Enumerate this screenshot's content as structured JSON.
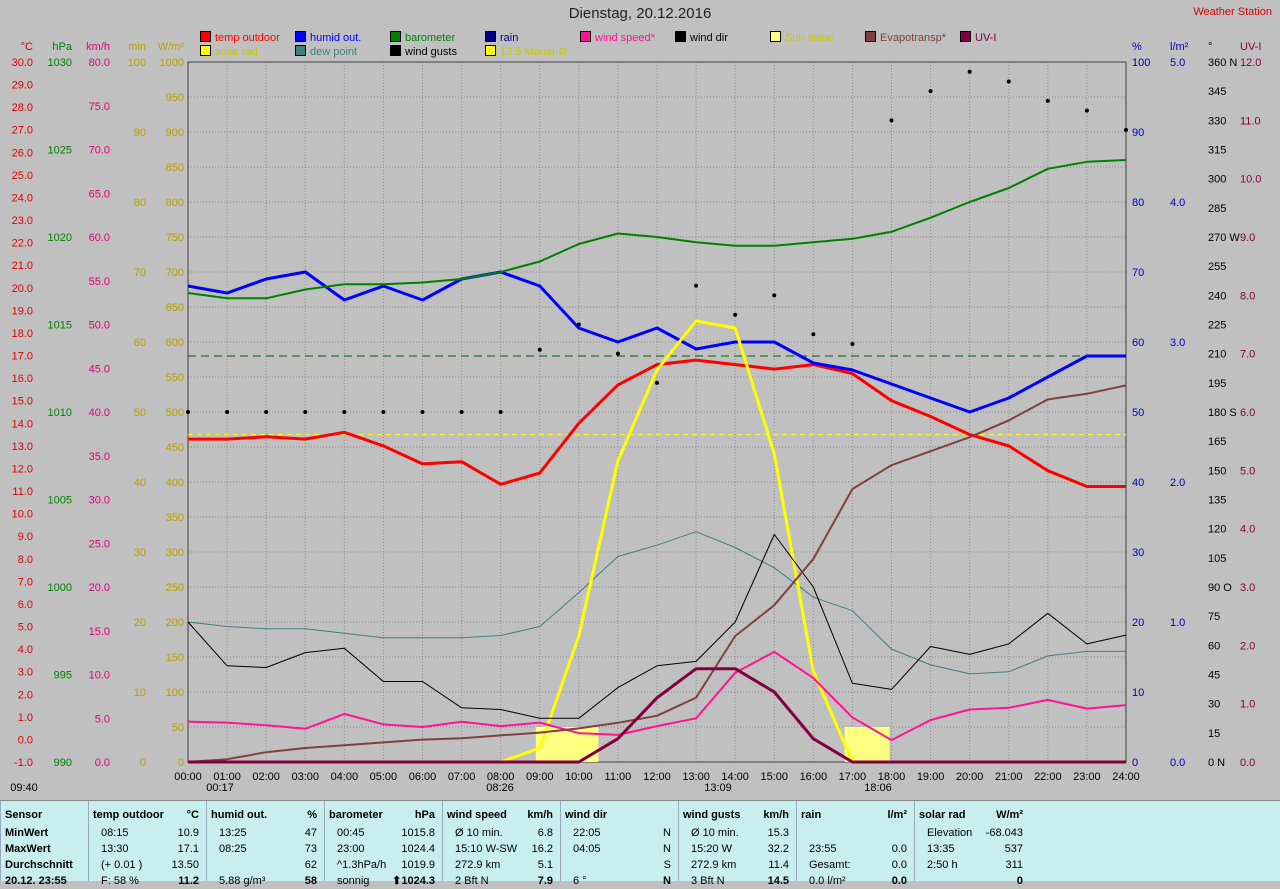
{
  "title": "Dienstag, 20.12.2016",
  "station": "Weather Station",
  "legend": [
    {
      "label": "temp outdoor",
      "color": "#ff0000"
    },
    {
      "label": "solar rad",
      "color": "#ffff00"
    },
    {
      "label": "humid out.",
      "color": "#0000ff"
    },
    {
      "label": "dew point",
      "color": "#408080"
    },
    {
      "label": "barometer",
      "color": "#008000"
    },
    {
      "label": "wind gusts",
      "color": "#000000"
    },
    {
      "label": "rain",
      "color": "#000080"
    },
    {
      "label": "13.5 Monat-Ø",
      "color": "#ffff00"
    },
    {
      "label": "wind speed*",
      "color": "#ff1493"
    },
    {
      "label": "wind dir",
      "color": "#000000"
    },
    {
      "label": "Sun shine",
      "color": "#ffff80"
    },
    {
      "label": "Evapotransp*",
      "color": "#804040"
    },
    {
      "label": "UV-I",
      "color": "#800040"
    }
  ],
  "axis_units": {
    "temp": "°C",
    "baro": "hPa",
    "wind": "km/h",
    "min": "min",
    "solar": "W/m²",
    "humid": "%",
    "rain": "l/m²",
    "dir": "°",
    "uv": "UV-I"
  },
  "axes": {
    "temp": [
      "30.0",
      "29.0",
      "28.0",
      "27.0",
      "26.0",
      "25.0",
      "24.0",
      "23.0",
      "22.0",
      "21.0",
      "20.0",
      "19.0",
      "18.0",
      "17.0",
      "16.0",
      "15.0",
      "14.0",
      "13.0",
      "12.0",
      "11.0",
      "10.0",
      "9.0",
      "8.0",
      "7.0",
      "6.0",
      "5.0",
      "4.0",
      "3.0",
      "2.0",
      "1.0",
      "0.0",
      "-1.0"
    ],
    "baro": [
      "1030",
      "1025",
      "1020",
      "1015",
      "1010",
      "1005",
      "1000",
      "995",
      "990"
    ],
    "wind": [
      "80.0",
      "75.0",
      "70.0",
      "65.0",
      "60.0",
      "55.0",
      "50.0",
      "45.0",
      "40.0",
      "35.0",
      "30.0",
      "25.0",
      "20.0",
      "15.0",
      "10.0",
      "5.0",
      "0.0"
    ],
    "min": [
      "100",
      "90",
      "80",
      "70",
      "60",
      "50",
      "40",
      "30",
      "20",
      "10",
      "0"
    ],
    "solar": [
      "1000",
      "950",
      "900",
      "850",
      "800",
      "750",
      "700",
      "650",
      "600",
      "550",
      "500",
      "450",
      "400",
      "350",
      "300",
      "250",
      "200",
      "150",
      "100",
      "50",
      "0"
    ],
    "humid": [
      "100",
      "90",
      "80",
      "70",
      "60",
      "50",
      "40",
      "30",
      "20",
      "10",
      "0"
    ],
    "rain": [
      "5.0",
      "4.0",
      "3.0",
      "2.0",
      "1.0",
      "0.0"
    ],
    "dir": [
      "360 N",
      "345",
      "330",
      "315",
      "300",
      "285",
      "270 W",
      "255",
      "240",
      "225",
      "210",
      "195",
      "180 S",
      "165",
      "150",
      "135",
      "120",
      "105",
      "90 O",
      "75",
      "60",
      "45",
      "30",
      "15",
      "0 N"
    ],
    "uv": [
      "12.0",
      "11.0",
      "10.0",
      "9.0",
      "8.0",
      "7.0",
      "6.0",
      "5.0",
      "4.0",
      "3.0",
      "2.0",
      "1.0",
      "0.0"
    ]
  },
  "markers": {
    "sunrise": "08:26",
    "sunset": "18:06",
    "noon": "13:09",
    "min_time": "00:17",
    "start": "09:40"
  },
  "chart_data": {
    "type": "line",
    "x_label_times": [
      "00:00",
      "01:00",
      "02:00",
      "03:00",
      "04:00",
      "05:00",
      "06:00",
      "07:00",
      "08:00",
      "09:00",
      "10:00",
      "11:00",
      "12:00",
      "13:00",
      "14:00",
      "15:00",
      "16:00",
      "17:00",
      "18:00",
      "19:00",
      "20:00",
      "21:00",
      "22:00",
      "23:00",
      "24:00"
    ],
    "x_hours": [
      0,
      1,
      2,
      3,
      4,
      5,
      6,
      7,
      8,
      9,
      10,
      11,
      12,
      13,
      14,
      15,
      16,
      17,
      18,
      19,
      20,
      21,
      22,
      23,
      24
    ],
    "series": [
      {
        "name": "temp outdoor",
        "unit": "°C",
        "color": "#ff0000",
        "values": [
          13.3,
          13.3,
          13.4,
          13.3,
          13.6,
          13.0,
          12.2,
          12.3,
          11.3,
          11.8,
          14.0,
          15.7,
          16.6,
          16.8,
          16.6,
          16.4,
          16.6,
          16.2,
          15.0,
          14.3,
          13.5,
          13.0,
          11.9,
          11.2,
          11.2
        ]
      },
      {
        "name": "humid out.",
        "unit": "%",
        "color": "#0000ff",
        "values": [
          68,
          67,
          69,
          70,
          66,
          68,
          66,
          69,
          70,
          68,
          62,
          60,
          62,
          59,
          60,
          60,
          57,
          56,
          54,
          52,
          50,
          52,
          55,
          58,
          58
        ]
      },
      {
        "name": "barometer",
        "unit": "hPa",
        "color": "#008000",
        "values": [
          1016.8,
          1016.5,
          1016.5,
          1017.0,
          1017.3,
          1017.3,
          1017.4,
          1017.6,
          1018.0,
          1018.6,
          1019.6,
          1020.2,
          1020.0,
          1019.7,
          1019.5,
          1019.5,
          1019.7,
          1019.9,
          1020.3,
          1021.1,
          1022.0,
          1022.8,
          1023.9,
          1024.3,
          1024.4
        ]
      },
      {
        "name": "dew point",
        "unit": "°C",
        "color": "#408080",
        "values": [
          5.2,
          5.0,
          4.9,
          4.9,
          4.7,
          4.5,
          4.5,
          4.5,
          4.6,
          5.0,
          6.5,
          8.1,
          8.6,
          9.2,
          8.5,
          7.6,
          6.3,
          5.7,
          4.0,
          3.3,
          2.9,
          3.0,
          3.7,
          3.9,
          3.9
        ]
      },
      {
        "name": "solar rad",
        "unit": "W/m²",
        "color": "#ffff00",
        "values": [
          0,
          0,
          0,
          0,
          0,
          0,
          0,
          0,
          0,
          20,
          180,
          430,
          560,
          630,
          620,
          440,
          130,
          0,
          0,
          0,
          0,
          0,
          0,
          0,
          0
        ]
      },
      {
        "name": "wind speed*",
        "unit": "km/h",
        "color": "#ff1493",
        "values": [
          4.6,
          4.5,
          4.2,
          3.8,
          5.5,
          4.3,
          4.0,
          4.6,
          4.1,
          4.5,
          3.3,
          3.1,
          4.1,
          5.0,
          10.2,
          12.6,
          9.6,
          5.1,
          2.5,
          4.8,
          6.0,
          6.2,
          7.1,
          6.1,
          6.5
        ]
      },
      {
        "name": "wind gusts",
        "unit": "km/h",
        "color": "#000000",
        "values": [
          16.0,
          11.0,
          10.8,
          12.5,
          13.0,
          9.2,
          9.2,
          6.2,
          6.0,
          5.0,
          5.0,
          8.5,
          11.0,
          11.5,
          16.0,
          26.0,
          20.0,
          9.0,
          8.3,
          13.2,
          12.3,
          13.5,
          17.0,
          13.5,
          14.5
        ]
      },
      {
        "name": "Evapotransp*",
        "unit": "l/m²",
        "color": "#804040",
        "values": [
          0.0,
          0.02,
          0.07,
          0.1,
          0.12,
          0.14,
          0.16,
          0.17,
          0.19,
          0.21,
          0.24,
          0.28,
          0.33,
          0.46,
          0.9,
          1.12,
          1.45,
          1.95,
          2.12,
          2.22,
          2.32,
          2.44,
          2.59,
          2.63,
          2.69
        ]
      },
      {
        "name": "UV-I",
        "unit": "UV-I",
        "color": "#800040",
        "values": [
          0,
          0,
          0,
          0,
          0,
          0,
          0,
          0,
          0,
          0,
          0,
          0.4,
          1.1,
          1.6,
          1.6,
          1.2,
          0.4,
          0,
          0,
          0,
          0,
          0,
          0,
          0,
          0
        ]
      },
      {
        "name": "13.5 Monat-Ø",
        "unit": "°C",
        "color": "#ffff00",
        "values": [
          13.5
        ]
      }
    ],
    "reference_lines": [
      {
        "name": "humid",
        "value": 58,
        "color": "#006400"
      },
      {
        "name": "13.5 Monat-Ø",
        "value": 13.5,
        "color": "#ffff00"
      }
    ],
    "sunshine_blocks": [
      {
        "from": 8.9,
        "to": 10.5
      },
      {
        "from": 16.8,
        "to": 17.95
      }
    ],
    "wind_dir_deg": [
      180,
      180,
      180,
      180,
      180,
      180,
      180,
      180,
      180,
      212,
      225,
      210,
      195,
      245,
      230,
      240,
      220,
      215,
      330,
      345,
      355,
      350,
      340,
      335,
      325
    ]
  },
  "stats": {
    "columns": [
      {
        "header": "Sensor",
        "unit": "",
        "rows": [
          "MinWert",
          "MaxWert",
          "Durchschnitt",
          "20.12. 23:55"
        ]
      },
      {
        "header": "temp outdoor",
        "unit": "°C",
        "rows": [
          [
            "08:15",
            "10.9"
          ],
          [
            "13:30",
            "17.1"
          ],
          [
            "(+ 0.01 )",
            "13.50"
          ],
          [
            "F: 58 %",
            "11.2"
          ]
        ]
      },
      {
        "header": "humid out.",
        "unit": "%",
        "rows": [
          [
            "13:25",
            "47"
          ],
          [
            "08:25",
            "73"
          ],
          [
            "",
            "62"
          ],
          [
            "5.88 g/m³",
            "58"
          ]
        ]
      },
      {
        "header": "barometer",
        "unit": "hPa",
        "rows": [
          [
            "00:45",
            "1015.8"
          ],
          [
            "23:00",
            "1024.4"
          ],
          [
            "^1.3hPa/h",
            "1019.9"
          ],
          [
            "sonnig",
            "⬆1024.3"
          ]
        ]
      },
      {
        "header": "wind speed",
        "unit": "km/h",
        "rows": [
          [
            "Ø 10 min.",
            "6.8"
          ],
          [
            "15:10   W-SW",
            "16.2"
          ],
          [
            "272.9 km",
            "5.1"
          ],
          [
            "2 Bft N",
            "7.9"
          ]
        ]
      },
      {
        "header": "wind dir",
        "unit": "",
        "rows": [
          [
            "22:05",
            "N"
          ],
          [
            "04:05",
            "N"
          ],
          [
            "",
            "S"
          ],
          [
            "6 °",
            "N"
          ]
        ]
      },
      {
        "header": "wind gusts",
        "unit": "km/h",
        "rows": [
          [
            "Ø 10 min.",
            "15.3"
          ],
          [
            "15:20   W",
            "32.2"
          ],
          [
            "272.9 km",
            "11.4"
          ],
          [
            "3 Bft N",
            "14.5"
          ]
        ]
      },
      {
        "header": "rain",
        "unit": "l/m²",
        "rows": [
          [
            "",
            ""
          ],
          [
            "23:55",
            "0.0"
          ],
          [
            "Gesamt:",
            "0.0"
          ],
          [
            "0.0 l/m²",
            "0.0"
          ]
        ]
      },
      {
        "header": "solar rad",
        "unit": "W/m²",
        "rows": [
          [
            "Elevation",
            "-68.043"
          ],
          [
            "13:35",
            "537"
          ],
          [
            "2:50 h",
            "311"
          ],
          [
            "",
            "0"
          ]
        ]
      }
    ]
  }
}
